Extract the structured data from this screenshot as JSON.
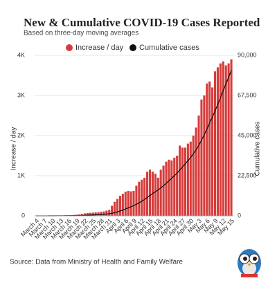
{
  "chart_data": {
    "type": "bar-line",
    "title": "New & Cumulative COVID-19 Cases Reported",
    "subtitle": "Based on three-day moving averages",
    "y_label": "Increase / day",
    "y2_label": "Cumulative cases",
    "source": "Source: Data from Ministry of Health and Family Welfare",
    "categories": [
      "March 4",
      null,
      null,
      "March 7",
      null,
      null,
      "March 10",
      null,
      null,
      "March 13",
      null,
      null,
      "March 16",
      null,
      null,
      "March 19",
      null,
      null,
      "March 22",
      null,
      null,
      "March 25",
      null,
      null,
      "March 28",
      null,
      null,
      "March 31",
      null,
      null,
      "April 3",
      null,
      null,
      "April 6",
      null,
      null,
      "April 9",
      null,
      null,
      "April 12",
      null,
      null,
      "April 15",
      null,
      null,
      "April 18",
      null,
      null,
      "April 21",
      null,
      null,
      "April 24",
      null,
      null,
      "April 27",
      null,
      null,
      "April 30",
      null,
      null,
      "May 3",
      null,
      null,
      "May 6",
      null,
      null,
      "May 9",
      null,
      null,
      "May 12",
      null,
      null,
      "May 15"
    ],
    "series": [
      {
        "name": "Increase / day",
        "color": "#d63c3c",
        "kind": "bar",
        "values": [
          1,
          2,
          2,
          3,
          3,
          5,
          6,
          7,
          8,
          9,
          10,
          12,
          14,
          18,
          22,
          28,
          35,
          45,
          60,
          70,
          75,
          80,
          85,
          90,
          100,
          110,
          130,
          150,
          250,
          350,
          420,
          500,
          550,
          600,
          620,
          610,
          620,
          750,
          850,
          900,
          950,
          1100,
          1150,
          1100,
          1050,
          950,
          1150,
          1250,
          1350,
          1400,
          1380,
          1450,
          1500,
          1750,
          1700,
          1700,
          1800,
          1850,
          2000,
          2200,
          2500,
          2900,
          3000,
          3300,
          3350,
          3200,
          3600,
          3700,
          3800,
          3850,
          3750,
          3800,
          3900
        ]
      },
      {
        "name": "Cumulative cases",
        "color": "#111111",
        "kind": "line",
        "axis": "y2",
        "values": [
          1,
          3,
          5,
          8,
          11,
          16,
          22,
          29,
          37,
          46,
          56,
          68,
          82,
          100,
          122,
          150,
          185,
          230,
          290,
          360,
          435,
          515,
          600,
          690,
          790,
          900,
          1030,
          1180,
          1430,
          1780,
          2200,
          2700,
          3250,
          3850,
          4470,
          5080,
          5700,
          6450,
          7300,
          8200,
          9150,
          10250,
          11400,
          12500,
          13550,
          14500,
          15650,
          16900,
          18250,
          19650,
          21030,
          22480,
          23980,
          25730,
          27430,
          29130,
          30930,
          32780,
          34780,
          36980,
          39480,
          42380,
          45380,
          48680,
          52030,
          55230,
          58830,
          62530,
          66330,
          70180,
          73930,
          77730,
          81630
        ]
      }
    ],
    "ylim": [
      0,
      4000
    ],
    "yticks": [
      0,
      {
        "value": 1000,
        "label": "1K"
      },
      {
        "value": 2000,
        "label": "2K"
      },
      {
        "value": 3000,
        "label": "3K"
      },
      {
        "value": 4000,
        "label": "4K"
      }
    ],
    "y2lim": [
      0,
      90000
    ],
    "y2ticks": [
      0,
      {
        "value": 22500,
        "label": "22,500"
      },
      {
        "value": 45000,
        "label": "45,000"
      },
      {
        "value": 67500,
        "label": "67,500"
      },
      {
        "value": 90000,
        "label": "90,000"
      }
    ],
    "grid": true
  }
}
